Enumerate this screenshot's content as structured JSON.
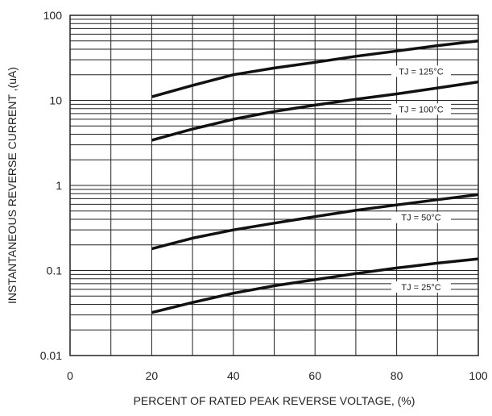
{
  "chart_data": {
    "type": "line",
    "xlabel": "PERCENT OF RATED PEAK REVERSE VOLTAGE, (%)",
    "ylabel": "INSTANTANEOUS REVERSE CURRENT ,(uA)",
    "xlim": [
      0,
      100
    ],
    "ylim": [
      0.01,
      100
    ],
    "yscale": "log",
    "grid": true,
    "x_ticks": [
      {
        "value": 0,
        "label": "0"
      },
      {
        "value": 20,
        "label": "20"
      },
      {
        "value": 40,
        "label": "40"
      },
      {
        "value": 60,
        "label": "60"
      },
      {
        "value": 80,
        "label": "80"
      },
      {
        "value": 100,
        "label": "100"
      }
    ],
    "y_ticks": [
      {
        "value": 0.01,
        "label": "0.01"
      },
      {
        "value": 0.1,
        "label": "0.1"
      },
      {
        "value": 1,
        "label": "1"
      },
      {
        "value": 10,
        "label": "10"
      },
      {
        "value": 100,
        "label": "100"
      }
    ],
    "line_color": "#111111",
    "grid_color": "#222222",
    "series": [
      {
        "name": "TJ = 125°C",
        "label_at": {
          "x": 86,
          "y": 22
        },
        "x": [
          20,
          30,
          40,
          50,
          60,
          70,
          80,
          90,
          100
        ],
        "y": [
          11,
          15,
          20,
          24,
          28,
          33,
          38,
          44,
          50
        ]
      },
      {
        "name": "TJ = 100°C",
        "label_at": {
          "x": 86,
          "y": 7.9
        },
        "x": [
          20,
          30,
          40,
          50,
          60,
          70,
          80,
          90,
          100
        ],
        "y": [
          3.4,
          4.6,
          6.0,
          7.4,
          8.8,
          10.3,
          11.9,
          14.0,
          16.5
        ]
      },
      {
        "name": "TJ = 50°C",
        "label_at": {
          "x": 86,
          "y": 0.42
        },
        "x": [
          20,
          30,
          40,
          50,
          60,
          70,
          80,
          90,
          100
        ],
        "y": [
          0.18,
          0.24,
          0.3,
          0.36,
          0.43,
          0.51,
          0.59,
          0.68,
          0.78
        ]
      },
      {
        "name": "TJ = 25°C",
        "label_at": {
          "x": 86,
          "y": 0.064
        },
        "x": [
          20,
          30,
          40,
          50,
          60,
          70,
          80,
          90,
          100
        ],
        "y": [
          0.032,
          0.042,
          0.054,
          0.066,
          0.078,
          0.092,
          0.107,
          0.122,
          0.137
        ]
      }
    ]
  }
}
